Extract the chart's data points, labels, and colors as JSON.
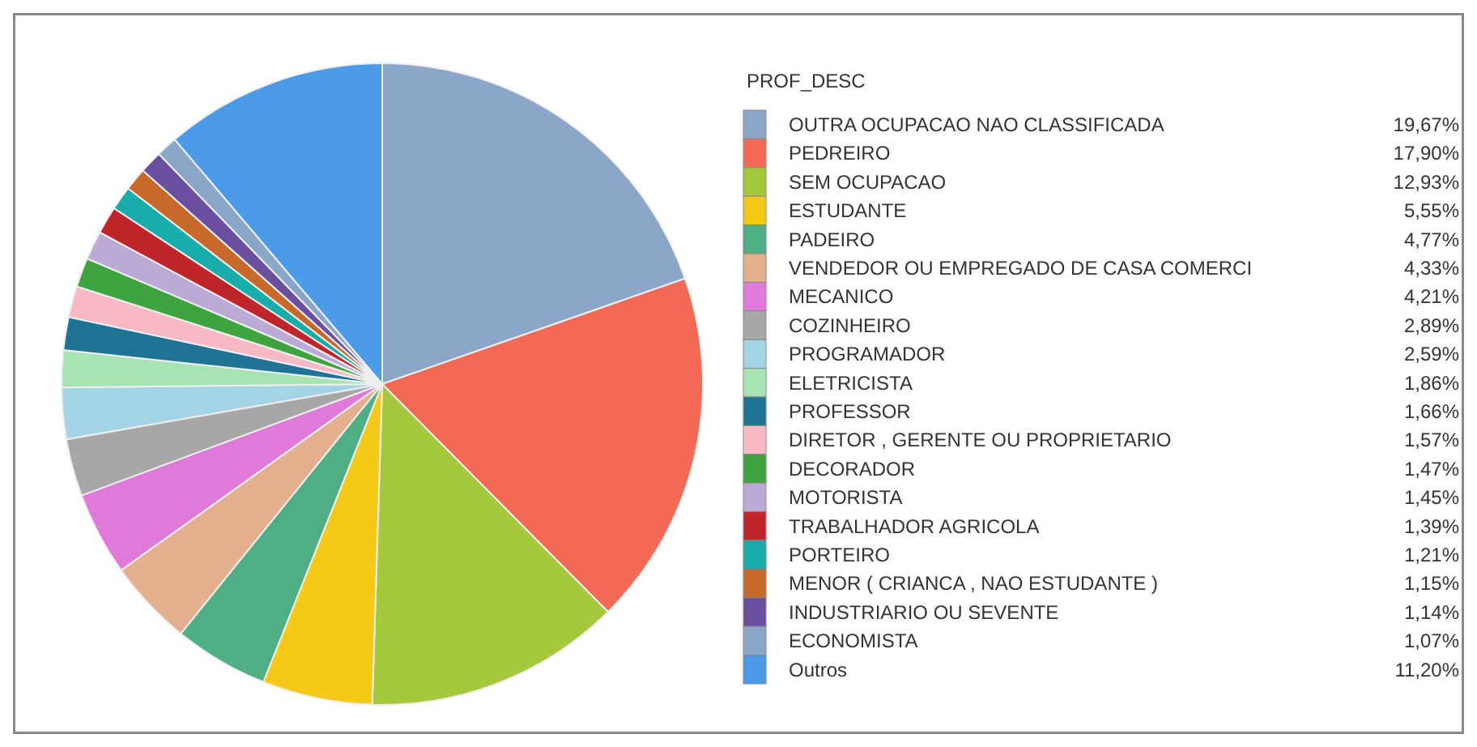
{
  "chart_data": {
    "type": "pie",
    "legend_title": "PROF_DESC",
    "legend": "right",
    "categories": [
      "OUTRA OCUPACAO NAO CLASSIFICADA",
      "PEDREIRO",
      "SEM OCUPACAO",
      "ESTUDANTE",
      "PADEIRO",
      "VENDEDOR OU EMPREGADO DE CASA COMERCI",
      "MECANICO",
      "COZINHEIRO",
      "PROGRAMADOR",
      "ELETRICISTA",
      "PROFESSOR",
      "DIRETOR , GERENTE OU PROPRIETARIO",
      "DECORADOR",
      "MOTORISTA",
      "TRABALHADOR AGRICOLA",
      "PORTEIRO",
      "MENOR ( CRIANCA , NAO ESTUDANTE )",
      "INDUSTRIARIO OU SEVENTE",
      "ECONOMISTA",
      "Outros"
    ],
    "values": [
      19.67,
      17.9,
      12.93,
      5.55,
      4.77,
      4.33,
      4.21,
      2.89,
      2.59,
      1.86,
      1.66,
      1.57,
      1.47,
      1.45,
      1.39,
      1.21,
      1.15,
      1.14,
      1.07,
      11.2
    ],
    "value_labels": [
      "19,67%",
      "17,90%",
      "12,93%",
      "5,55%",
      "4,77%",
      "4,33%",
      "4,21%",
      "2,89%",
      "2,59%",
      "1,86%",
      "1,66%",
      "1,57%",
      "1,47%",
      "1,45%",
      "1,39%",
      "1,21%",
      "1,15%",
      "1,14%",
      "1,07%",
      "11,20%"
    ],
    "colors": [
      "#8ba6c8",
      "#f26a55",
      "#a6c83c",
      "#f5c918",
      "#4fae85",
      "#e2b08e",
      "#e07ad8",
      "#a7a7a7",
      "#a4d3e6",
      "#a8e3b4",
      "#1f7394",
      "#f7b9c5",
      "#3fa33f",
      "#bbaad6",
      "#c0252c",
      "#18acab",
      "#c8692a",
      "#6a4f9f",
      "#8aa7c9",
      "#4b9be8"
    ]
  }
}
